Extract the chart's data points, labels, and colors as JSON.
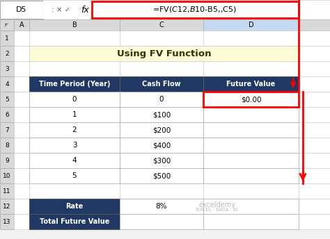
{
  "title": "Using FV Function",
  "formula_bar_cell": "D5",
  "formula_bar_formula": "=FV($C$12,$B$10-B5,,C5)",
  "header_row": [
    "Time Period (Year)",
    "Cash Flow",
    "Future Value"
  ],
  "data_rows": [
    [
      "0",
      "0",
      "$0.00"
    ],
    [
      "1",
      "$100",
      ""
    ],
    [
      "2",
      "$200",
      ""
    ],
    [
      "3",
      "$400",
      ""
    ],
    [
      "4",
      "$300",
      ""
    ],
    [
      "5",
      "$500",
      ""
    ]
  ],
  "summary_rows": [
    [
      "Rate",
      "8%"
    ],
    [
      "Total Future Value",
      ""
    ]
  ],
  "title_bg": "#FEFBD8",
  "header_bg": "#1F3864",
  "header_fg": "#FFFFFF",
  "grid_color": "#BBBBBB",
  "red": "#FF0000",
  "summary_header_bg": "#1F3864",
  "summary_header_fg": "#FFFFFF",
  "col_header_bg": "#D9D9D9",
  "col_d_header_bg": "#C5D9F1",
  "watermark": "exceldemy",
  "watermark_sub": "EXCEL · DATA · BI",
  "bg": "#F2F2F2"
}
